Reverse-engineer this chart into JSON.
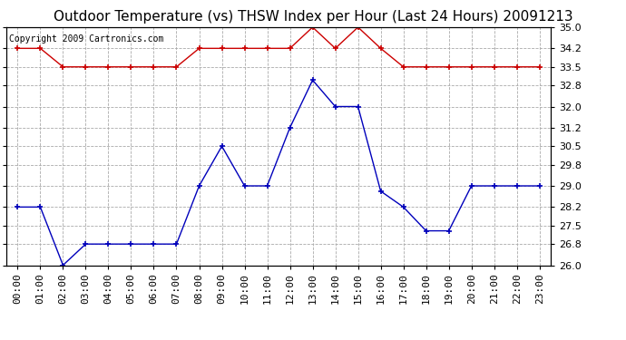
{
  "title": "Outdoor Temperature (vs) THSW Index per Hour (Last 24 Hours) 20091213",
  "copyright_text": "Copyright 2009 Cartronics.com",
  "hours": [
    "00:00",
    "01:00",
    "02:00",
    "03:00",
    "04:00",
    "05:00",
    "06:00",
    "07:00",
    "08:00",
    "09:00",
    "10:00",
    "11:00",
    "12:00",
    "13:00",
    "14:00",
    "15:00",
    "16:00",
    "17:00",
    "18:00",
    "19:00",
    "20:00",
    "21:00",
    "22:00",
    "23:00"
  ],
  "blue_data": [
    28.2,
    28.2,
    26.0,
    26.8,
    26.8,
    26.8,
    26.8,
    26.8,
    29.0,
    30.5,
    29.0,
    29.0,
    31.2,
    33.0,
    32.0,
    32.0,
    28.8,
    28.2,
    27.3,
    27.3,
    29.0,
    29.0,
    29.0,
    29.0
  ],
  "red_data": [
    34.2,
    34.2,
    33.5,
    33.5,
    33.5,
    33.5,
    33.5,
    33.5,
    34.2,
    34.2,
    34.2,
    34.2,
    34.2,
    35.0,
    34.2,
    35.0,
    34.2,
    33.5,
    33.5,
    33.5,
    33.5,
    33.5,
    33.5,
    33.5
  ],
  "ylim": [
    26.0,
    35.0
  ],
  "yticks": [
    26.0,
    26.8,
    27.5,
    28.2,
    29.0,
    29.8,
    30.5,
    31.2,
    32.0,
    32.8,
    33.5,
    34.2,
    35.0
  ],
  "bg_color": "#ffffff",
  "plot_bg_color": "#ffffff",
  "grid_color": "#aaaaaa",
  "blue_color": "#0000bb",
  "red_color": "#cc0000",
  "title_fontsize": 11,
  "copyright_fontsize": 7,
  "tick_fontsize": 8,
  "marker_size": 5,
  "marker_style": "+"
}
